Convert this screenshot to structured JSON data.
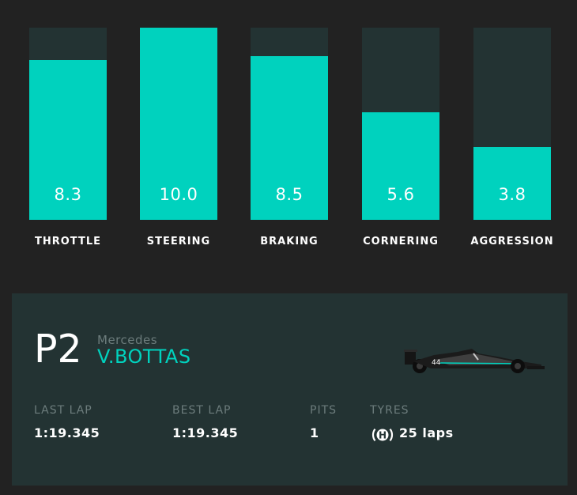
{
  "chart_data": {
    "type": "bar",
    "categories": [
      "THROTTLE",
      "STEERING",
      "BRAKING",
      "CORNERING",
      "AGGRESSION"
    ],
    "values": [
      8.3,
      10.0,
      8.5,
      5.6,
      3.8
    ],
    "value_labels": [
      "8.3",
      "10.0",
      "8.5",
      "5.6",
      "3.8"
    ],
    "ylim": [
      0,
      10
    ],
    "colors": {
      "fill": "#00d2be",
      "track": "#233333"
    }
  },
  "driver_card": {
    "position": "P2",
    "team": "Mercedes",
    "driver": "V.BOTTAS",
    "last_lap_label": "LAST LAP",
    "last_lap_value": "1:19.345",
    "best_lap_label": "BEST LAP",
    "best_lap_value": "1:19.345",
    "pits_label": "PITS",
    "pits_value": "1",
    "tyres_label": "TYRES",
    "tyre_compound": "H",
    "tyre_laps": "25 laps",
    "car_icon": "f1-car-icon",
    "car_number": "44"
  },
  "colors": {
    "background": "#222222",
    "panel": "#233333",
    "accent": "#00d2be",
    "muted_text": "#6c7c7c",
    "text": "#ffffff"
  }
}
